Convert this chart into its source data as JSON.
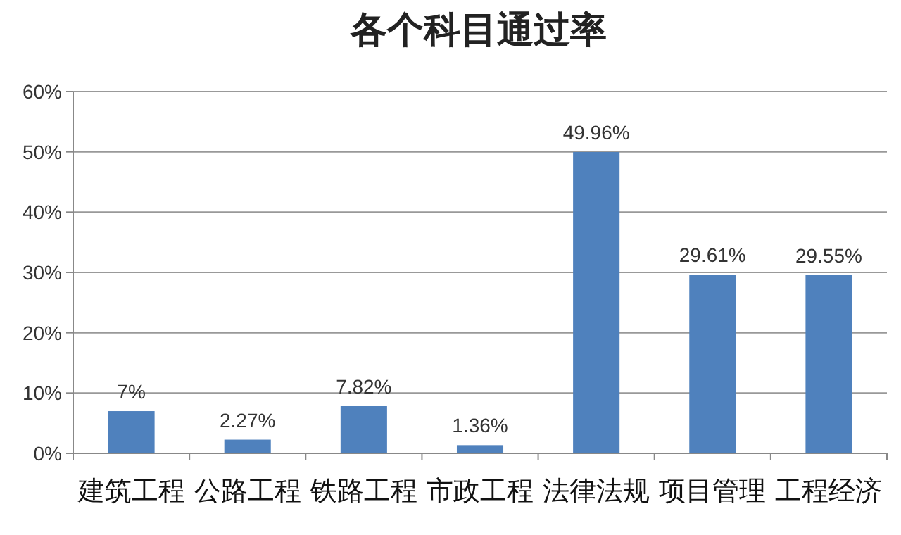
{
  "chart_data": {
    "type": "bar",
    "title": "各个科目通过率",
    "categories": [
      "建筑工程",
      "公路工程",
      "铁路工程",
      "市政工程",
      "法律法规",
      "项目管理",
      "工程经济"
    ],
    "values": [
      7,
      2.27,
      7.82,
      1.36,
      49.96,
      29.61,
      29.55
    ],
    "value_labels": [
      "7%",
      "2.27%",
      "7.82%",
      "1.36%",
      "49.96%",
      "29.61%",
      "29.55%"
    ],
    "color": "#4f81bd",
    "ylim": [
      0,
      60
    ],
    "yticks": [
      {
        "value": 0,
        "label": "0%"
      },
      {
        "value": 10,
        "label": "10%"
      },
      {
        "value": 20,
        "label": "20%"
      },
      {
        "value": 30,
        "label": "30%"
      },
      {
        "value": 40,
        "label": "40%"
      },
      {
        "value": 50,
        "label": "50%"
      },
      {
        "value": 60,
        "label": "60%"
      }
    ],
    "grid": "y"
  }
}
